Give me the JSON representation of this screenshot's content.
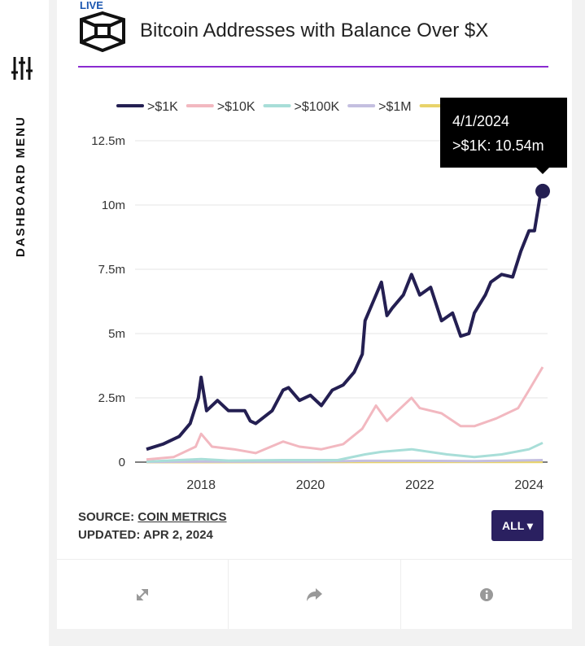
{
  "live_label": "LIVE",
  "sidebar": {
    "label": "DASHBOARD MENU",
    "icon": "sliders-icon"
  },
  "header": {
    "title": "Bitcoin Addresses with Balance Over $X",
    "logo": "cube-logo"
  },
  "tooltip": {
    "date": "4/1/2024",
    "text": ">$1K: 10.54m"
  },
  "footer": {
    "source_prefix": "SOURCE: ",
    "source_link": "COIN METRICS",
    "updated": "UPDATED: APR 2, 2024",
    "range_button": "ALL ▾"
  },
  "actions": [
    {
      "icon": "expand-icon"
    },
    {
      "icon": "share-icon"
    },
    {
      "icon": "info-icon"
    }
  ],
  "chart_data": {
    "type": "line",
    "title": "Bitcoin Addresses with Balance Over $X",
    "ylim": [
      0,
      12.5
    ],
    "y_ticks": [
      {
        "v": 0,
        "label": "0"
      },
      {
        "v": 2.5,
        "label": "2.5m"
      },
      {
        "v": 5,
        "label": "5m"
      },
      {
        "v": 7.5,
        "label": "7.5m"
      },
      {
        "v": 10,
        "label": "10m"
      },
      {
        "v": 12.5,
        "label": "12.5m"
      }
    ],
    "x_ticks": [
      {
        "v": 2018,
        "label": "2018"
      },
      {
        "v": 2020,
        "label": "2020"
      },
      {
        "v": 2022,
        "label": "2022"
      },
      {
        "v": 2024,
        "label": "2024"
      }
    ],
    "xlim": [
      2017.0,
      2024.25
    ],
    "grid": true,
    "legend": "top",
    "series": [
      {
        "name": ">$1K",
        "color": "#241f52",
        "x": [
          2017.0,
          2017.3,
          2017.6,
          2017.8,
          2017.95,
          2018.0,
          2018.1,
          2018.3,
          2018.5,
          2018.8,
          2018.9,
          2019.0,
          2019.3,
          2019.5,
          2019.6,
          2019.8,
          2020.0,
          2020.2,
          2020.4,
          2020.6,
          2020.8,
          2020.95,
          2021.0,
          2021.2,
          2021.3,
          2021.4,
          2021.5,
          2021.7,
          2021.85,
          2022.0,
          2022.2,
          2022.4,
          2022.6,
          2022.75,
          2022.9,
          2023.0,
          2023.2,
          2023.3,
          2023.5,
          2023.7,
          2023.85,
          2024.0,
          2024.1,
          2024.2,
          2024.25
        ],
        "y": [
          0.5,
          0.7,
          1.0,
          1.5,
          2.5,
          3.3,
          2.0,
          2.4,
          2.0,
          2.0,
          1.6,
          1.5,
          2.0,
          2.8,
          2.9,
          2.4,
          2.6,
          2.2,
          2.8,
          3.0,
          3.5,
          4.2,
          5.5,
          6.5,
          7.0,
          5.7,
          6.0,
          6.5,
          7.3,
          6.5,
          6.8,
          5.5,
          5.8,
          4.9,
          5.0,
          5.8,
          6.5,
          7.0,
          7.3,
          7.2,
          8.2,
          9.0,
          9.0,
          10.3,
          10.54
        ]
      },
      {
        "name": ">$10K",
        "color": "#f2b8c0",
        "x": [
          2017.0,
          2017.5,
          2017.9,
          2018.0,
          2018.2,
          2018.6,
          2019.0,
          2019.5,
          2019.8,
          2020.2,
          2020.6,
          2020.95,
          2021.2,
          2021.4,
          2021.6,
          2021.85,
          2022.0,
          2022.4,
          2022.75,
          2023.0,
          2023.4,
          2023.8,
          2024.0,
          2024.25
        ],
        "y": [
          0.1,
          0.2,
          0.6,
          1.1,
          0.6,
          0.5,
          0.35,
          0.8,
          0.6,
          0.5,
          0.7,
          1.3,
          2.2,
          1.6,
          2.0,
          2.5,
          2.1,
          1.9,
          1.4,
          1.4,
          1.7,
          2.1,
          2.8,
          3.7
        ]
      },
      {
        "name": ">$100K",
        "color": "#a8ded8",
        "x": [
          2017.0,
          2018.0,
          2018.5,
          2019.5,
          2020.5,
          2021.0,
          2021.3,
          2021.85,
          2022.5,
          2023.0,
          2023.5,
          2024.0,
          2024.25
        ],
        "y": [
          0.02,
          0.12,
          0.06,
          0.08,
          0.08,
          0.3,
          0.4,
          0.5,
          0.3,
          0.2,
          0.3,
          0.5,
          0.75
        ]
      },
      {
        "name": ">$1M",
        "color": "#c4bfe0",
        "x": [
          2017.0,
          2018.0,
          2020.0,
          2021.0,
          2022.0,
          2023.0,
          2024.25
        ],
        "y": [
          0.01,
          0.02,
          0.02,
          0.05,
          0.05,
          0.04,
          0.08
        ]
      },
      {
        "name": "",
        "color": "#e8d36a",
        "x": [
          2017.0,
          2024.25
        ],
        "y": [
          0.0,
          0.01
        ]
      }
    ]
  }
}
